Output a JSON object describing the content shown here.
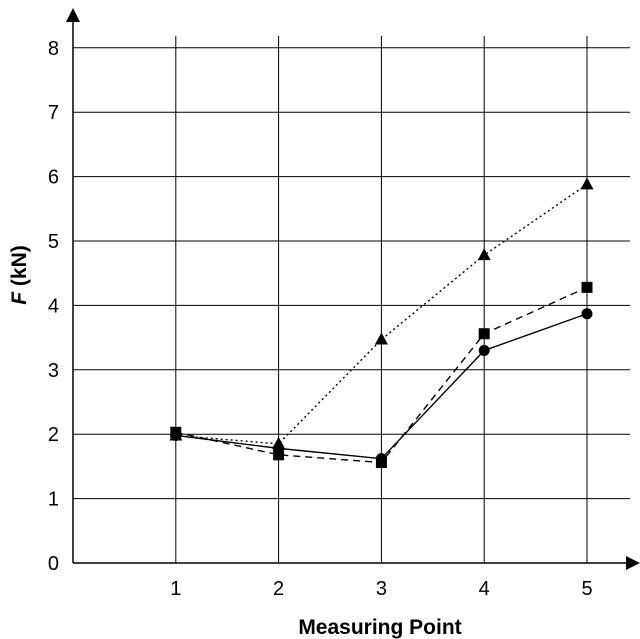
{
  "chart_data": {
    "type": "line",
    "x": [
      1,
      2,
      3,
      4,
      5
    ],
    "xlabel": "Measuring Point",
    "ylabel_italic": "F",
    "ylabel_rest": " (kN)",
    "xlim": [
      0,
      5.5
    ],
    "ylim": [
      0,
      8
    ],
    "xticks": [
      1,
      2,
      3,
      4,
      5
    ],
    "yticks": [
      0,
      1,
      2,
      3,
      4,
      5,
      6,
      7,
      8
    ],
    "grid": true,
    "series": [
      {
        "marker": "circle",
        "line_style": "solid",
        "color": "#000000",
        "values": [
          1.98,
          1.78,
          1.62,
          3.3,
          3.87
        ]
      },
      {
        "marker": "square",
        "line_style": "dashed",
        "color": "#000000",
        "values": [
          2.03,
          1.68,
          1.56,
          3.56,
          4.28
        ]
      },
      {
        "marker": "triangle",
        "line_style": "dotted",
        "color": "#000000",
        "values": [
          1.98,
          1.85,
          3.47,
          4.78,
          5.88
        ]
      }
    ]
  }
}
